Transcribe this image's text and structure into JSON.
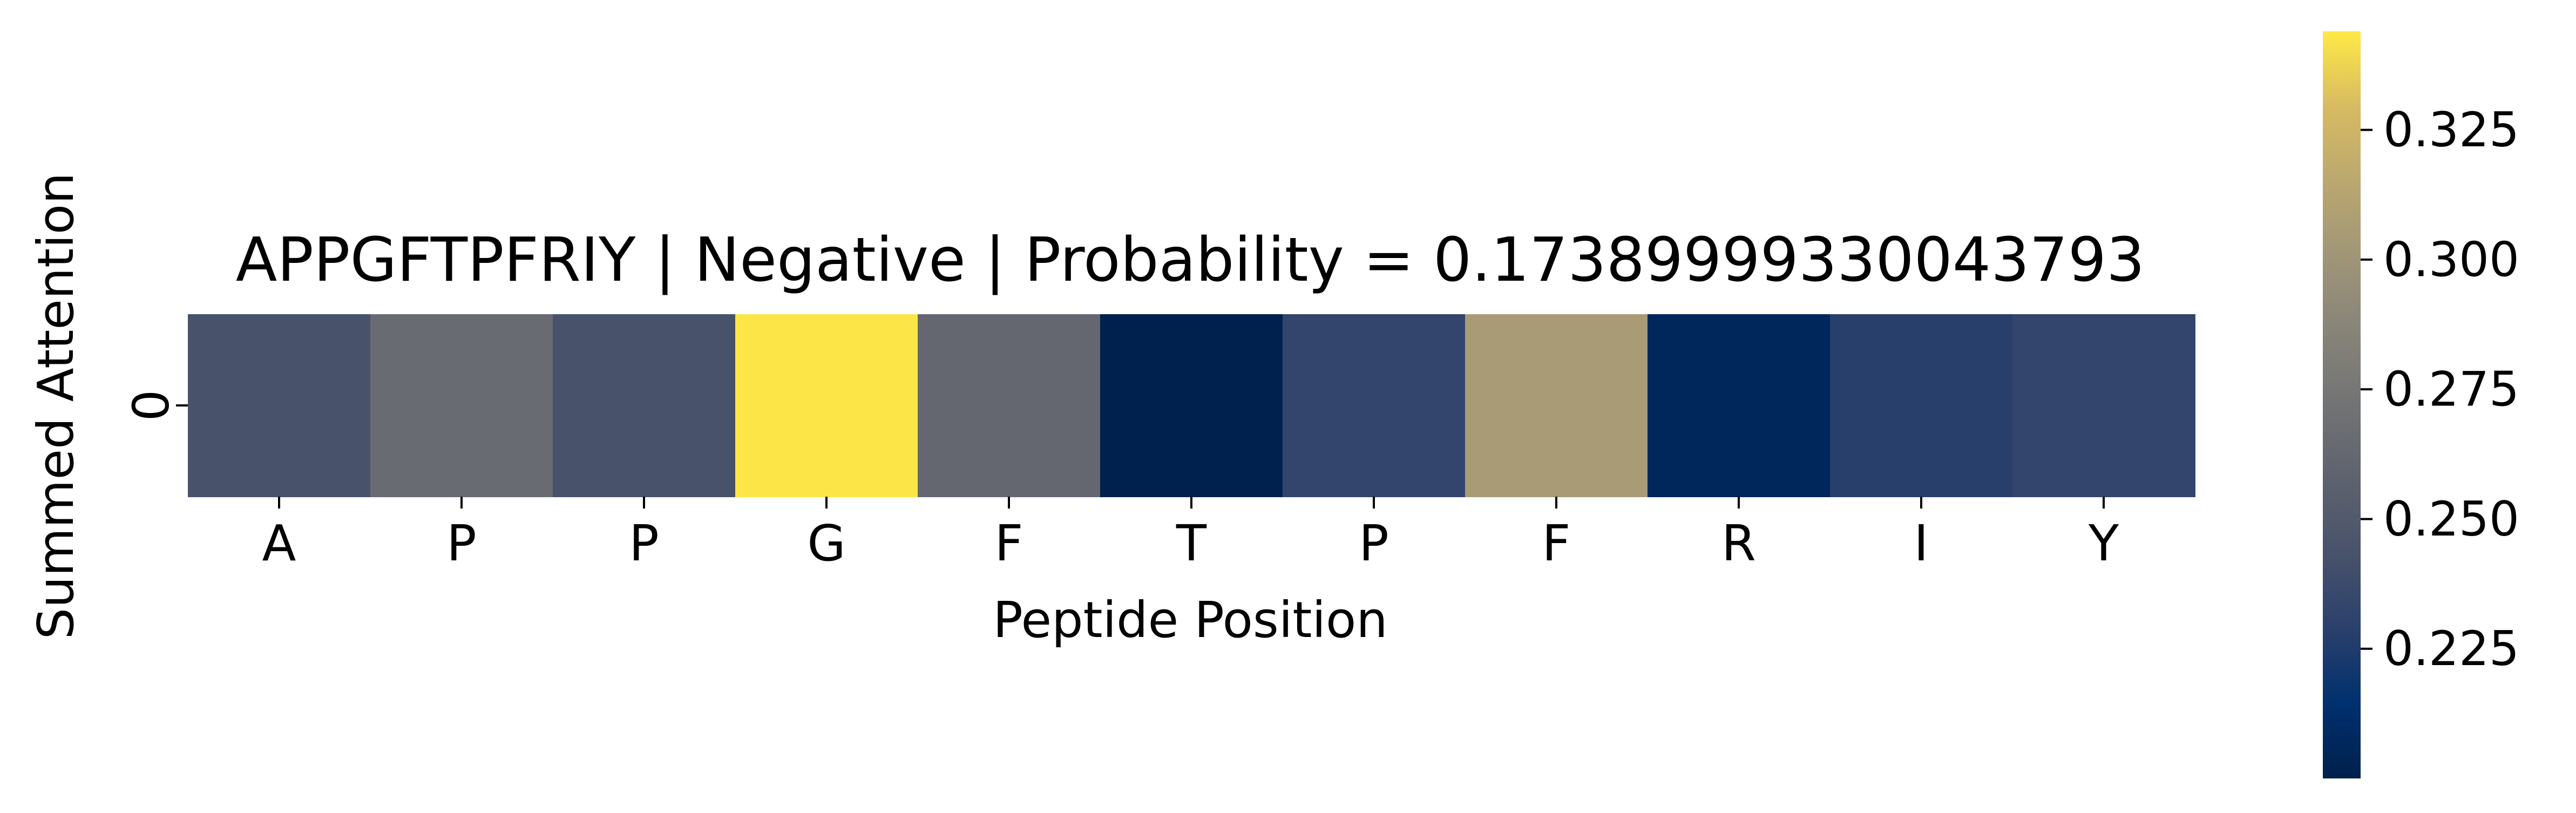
{
  "chart_data": {
    "type": "heatmap",
    "title": "APPGFTPFRIY | Negative | Probability = 0.17389999330043793",
    "xlabel": "Peptide Position",
    "ylabel": "Summed Attention",
    "x_categories": [
      "A",
      "P",
      "P",
      "G",
      "F",
      "T",
      "P",
      "F",
      "R",
      "I",
      "Y"
    ],
    "y_categories": [
      "0"
    ],
    "values": [
      [
        0.243,
        0.265,
        0.243,
        0.343,
        0.262,
        0.201,
        0.233,
        0.305,
        0.206,
        0.228,
        0.233
      ]
    ],
    "colormap": "cividis",
    "colorbar": {
      "vmin": 0.2,
      "vmax": 0.344,
      "ticks": [
        0.225,
        0.25,
        0.275,
        0.3,
        0.325
      ],
      "tick_labels": [
        "0.225",
        "0.250",
        "0.275",
        "0.300",
        "0.325"
      ]
    },
    "grid": false
  }
}
